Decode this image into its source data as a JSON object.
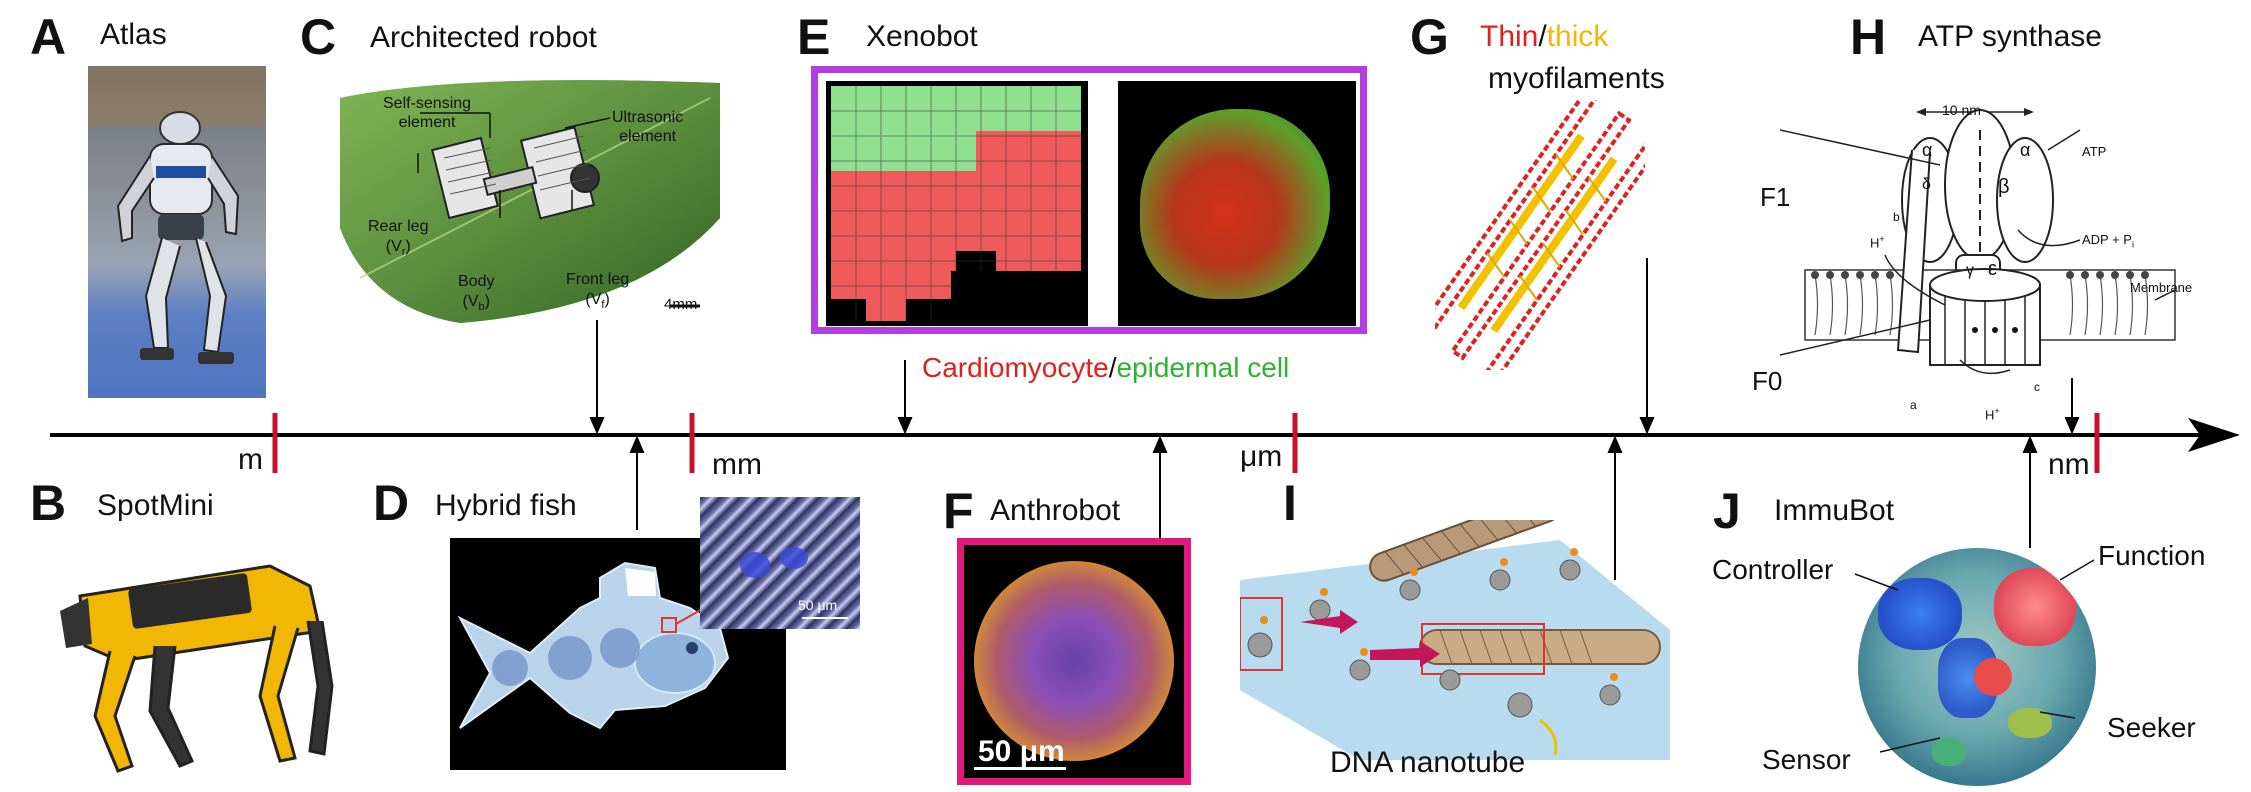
{
  "panels": {
    "A": {
      "letter": "A",
      "title": "Atlas"
    },
    "B": {
      "letter": "B",
      "title": "SpotMini"
    },
    "C": {
      "letter": "C",
      "title": "Architected robot",
      "labels": {
        "self_sensing_1": "Self-sensing",
        "self_sensing_2": "element",
        "ultrasonic_1": "Ultrasonic",
        "ultrasonic_2": "element",
        "rear_leg": "Rear leg",
        "rear_leg_v": "(V",
        "body": "Body",
        "body_v": "(V",
        "front_leg": "Front leg",
        "front_leg_v": "(V",
        "sub_r": "r",
        "sub_b": "b",
        "sub_f": "f",
        "close": ")",
        "scalebar": "4mm"
      }
    },
    "D": {
      "letter": "D",
      "title": "Hybrid fish",
      "scalebar": "50 μm"
    },
    "E": {
      "letter": "E",
      "title": "Xenobot",
      "caption_red": "Cardiomyocyte",
      "caption_sep": "/",
      "caption_green": "epidermal cell"
    },
    "F": {
      "letter": "F",
      "title": "Anthrobot",
      "scalebar": "50 μm"
    },
    "G": {
      "letter": "G",
      "title_thin": "Thin",
      "title_sep": "/",
      "title_thick": "thick",
      "title_rest": "myofilaments"
    },
    "H": {
      "letter": "H",
      "title": "ATP synthase",
      "labels": {
        "f1": "F1",
        "f0": "F0",
        "dim": "10 nm",
        "alpha": "α",
        "beta": "β",
        "delta": "δ",
        "gamma": "γ",
        "epsilon": "ε",
        "atp": "ATP",
        "adp": "ADP + P",
        "adp_sub": "i",
        "membrane": "Membrane",
        "hplus": "H",
        "plus": "+",
        "a": "a",
        "b": "b",
        "c": "c"
      }
    },
    "I": {
      "letter": "I",
      "title": "DNA nanotube"
    },
    "J": {
      "letter": "J",
      "title": "ImmuBot",
      "labels": {
        "controller": "Controller",
        "function": "Function",
        "seeker": "Seeker",
        "sensor": "Sensor"
      }
    }
  },
  "axis": {
    "scale_labels": {
      "m": "m",
      "mm": "mm",
      "um": "μm",
      "nm": "nm"
    }
  },
  "colors": {
    "axis": "#000000",
    "tick": "#c8102e",
    "thin": "#e0201f",
    "thick": "#f2b705",
    "green": "#2fb22f",
    "xeno_frame": "#b23de0",
    "anthro_frame": "#e0197d",
    "red_box": "#e0352e"
  }
}
